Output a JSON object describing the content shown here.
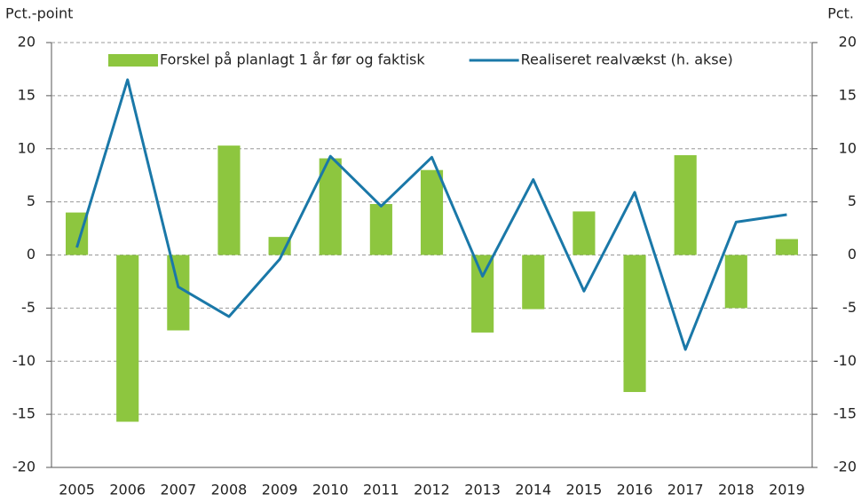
{
  "chart_data": {
    "type": "bar-line",
    "y_label": "Pct.-point",
    "y2_label": "Pct.",
    "categories": [
      "2005",
      "2006",
      "2007",
      "2008",
      "2009",
      "2010",
      "2011",
      "2012",
      "2013",
      "2014",
      "2015",
      "2016",
      "2017",
      "2018",
      "2019"
    ],
    "series": [
      {
        "name": "Forskel på planlagt 1 år før og faktisk",
        "type": "bar",
        "color": "#8dc63f",
        "values": [
          4.0,
          -15.7,
          -7.1,
          10.3,
          1.7,
          9.1,
          4.8,
          8.0,
          -7.3,
          -5.1,
          4.1,
          -12.9,
          9.4,
          -5.0,
          1.5
        ]
      },
      {
        "name": "Realiseret realvækst (h. akse)",
        "type": "line",
        "axis": "y2",
        "color": "#1a78a8",
        "values": [
          0.7,
          16.5,
          -3.0,
          -5.8,
          -0.4,
          9.3,
          4.6,
          9.2,
          -2.0,
          7.1,
          -3.4,
          5.9,
          -8.9,
          3.1,
          3.8
        ]
      }
    ],
    "ylim": [
      -20,
      20
    ],
    "yticks": [
      -20,
      -15,
      -10,
      -5,
      0,
      5,
      10,
      15,
      20
    ],
    "y2lim": [
      -20,
      20
    ],
    "y2ticks": [
      -20,
      -15,
      -10,
      -5,
      0,
      5,
      10,
      15,
      20
    ],
    "grid": true,
    "legend": "top"
  }
}
